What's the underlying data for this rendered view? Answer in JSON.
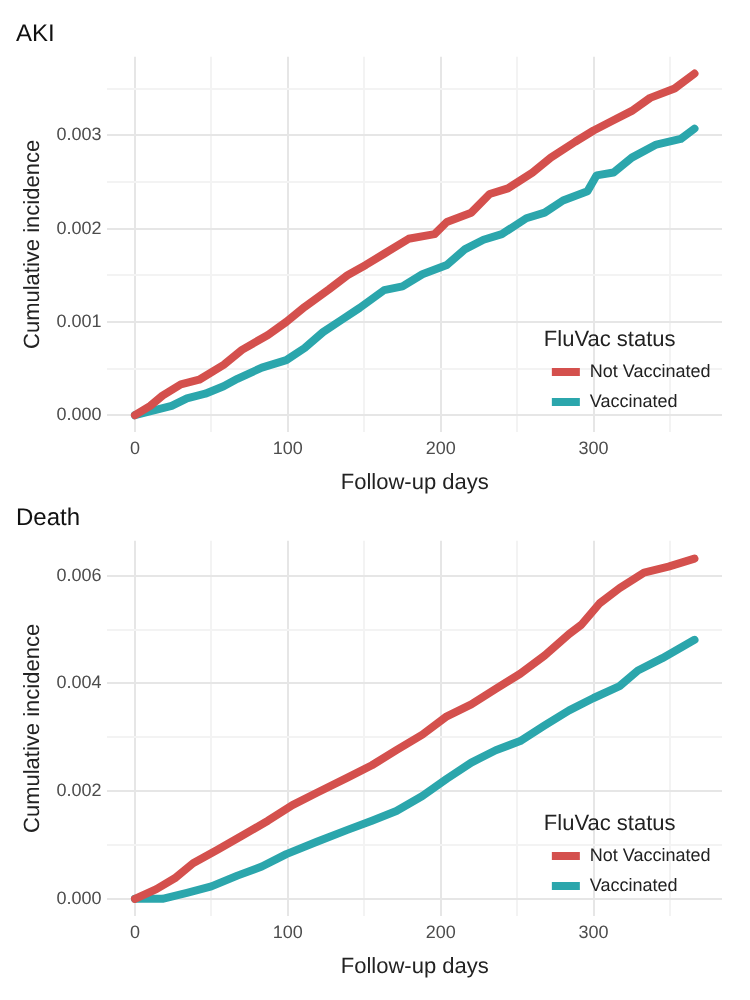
{
  "chart_data": [
    {
      "type": "line",
      "title": "AKI",
      "xlabel": "Follow-up days",
      "ylabel": "Cumulative incidence",
      "legend_title": "FluVac status",
      "legend": "bottom right",
      "grid": true,
      "xlim": [
        -18,
        384
      ],
      "xticks": [
        0,
        {
          "value": 50,
          "label": null
        },
        100,
        {
          "value": 150,
          "label": null
        },
        200,
        {
          "value": 250,
          "label": null
        },
        300,
        {
          "value": 350,
          "label": null
        }
      ],
      "ylim": [
        -0.00018,
        0.00384
      ],
      "yticks": [
        {
          "value": 0,
          "label": "0.000"
        },
        {
          "value": 0.0005,
          "label": null
        },
        {
          "value": 0.001,
          "label": "0.001"
        },
        {
          "value": 0.0015,
          "label": null
        },
        {
          "value": 0.002,
          "label": "0.002"
        },
        {
          "value": 0.0025,
          "label": null
        },
        {
          "value": 0.003,
          "label": "0.003"
        },
        {
          "value": 0.0035,
          "label": null
        }
      ],
      "series": [
        {
          "name": "Not Vaccinated",
          "color": "#d4504d",
          "x": [
            0,
            10,
            18,
            30,
            42,
            58,
            70,
            87,
            99,
            111,
            127,
            139,
            151,
            163,
            179,
            196,
            204,
            220,
            232,
            244,
            260,
            272,
            288,
            300,
            313,
            325,
            337,
            353,
            366
          ],
          "values": [
            0,
            0.0001,
            0.00021,
            0.00033,
            0.00038,
            0.00054,
            0.0007,
            0.00086,
            0.001,
            0.00116,
            0.00135,
            0.0015,
            0.00161,
            0.00173,
            0.00189,
            0.00194,
            0.00207,
            0.00217,
            0.00237,
            0.00243,
            0.0026,
            0.00276,
            0.00293,
            0.00305,
            0.00316,
            0.00326,
            0.0034,
            0.0035,
            0.00366
          ]
        },
        {
          "name": "Vaccinated",
          "color": "#2ba6ac",
          "x": [
            0,
            24,
            34,
            46,
            58,
            67,
            83,
            99,
            111,
            123,
            135,
            147,
            163,
            175,
            188,
            204,
            216,
            228,
            240,
            256,
            268,
            280,
            296,
            302,
            313,
            325,
            341,
            357,
            366
          ],
          "values": [
            0,
            0.0001,
            0.00018,
            0.00023,
            0.00031,
            0.00039,
            0.00051,
            0.00059,
            0.00072,
            0.00089,
            0.00102,
            0.00115,
            0.00134,
            0.00138,
            0.00151,
            0.00161,
            0.00178,
            0.00188,
            0.00194,
            0.00211,
            0.00217,
            0.0023,
            0.0024,
            0.00257,
            0.0026,
            0.00276,
            0.0029,
            0.00296,
            0.00307
          ]
        }
      ]
    },
    {
      "type": "line",
      "title": "Death",
      "xlabel": "Follow-up days",
      "ylabel": "Cumulative incidence",
      "legend_title": "FluVac status",
      "legend": "bottom right",
      "grid": true,
      "xlim": [
        -18,
        384
      ],
      "xticks": [
        0,
        {
          "value": 50,
          "label": null
        },
        100,
        {
          "value": 150,
          "label": null
        },
        200,
        {
          "value": 250,
          "label": null
        },
        300,
        {
          "value": 350,
          "label": null
        }
      ],
      "ylim": [
        -0.00032,
        0.00665
      ],
      "yticks": [
        {
          "value": 0,
          "label": "0.000"
        },
        {
          "value": 0.001,
          "label": null
        },
        {
          "value": 0.002,
          "label": "0.002"
        },
        {
          "value": 0.003,
          "label": null
        },
        {
          "value": 0.004,
          "label": "0.004"
        },
        {
          "value": 0.005,
          "label": null
        },
        {
          "value": 0.006,
          "label": "0.006"
        }
      ],
      "series": [
        {
          "name": "Not Vaccinated",
          "color": "#d4504d",
          "x": [
            0,
            14,
            26,
            38,
            54,
            70,
            87,
            103,
            119,
            139,
            155,
            171,
            188,
            204,
            220,
            236,
            252,
            268,
            284,
            292,
            304,
            317,
            333,
            349,
            366
          ],
          "values": [
            0,
            0.00018,
            0.00038,
            0.00066,
            0.00091,
            0.00117,
            0.00145,
            0.00174,
            0.00197,
            0.00225,
            0.00248,
            0.00276,
            0.00305,
            0.00339,
            0.00361,
            0.0039,
            0.00418,
            0.00452,
            0.00492,
            0.00509,
            0.00549,
            0.00577,
            0.00606,
            0.00617,
            0.00632
          ]
        },
        {
          "name": "Vaccinated",
          "color": "#2ba6ac",
          "x": [
            0,
            18,
            34,
            50,
            67,
            83,
            99,
            119,
            139,
            155,
            171,
            188,
            204,
            220,
            236,
            252,
            268,
            284,
            300,
            317,
            329,
            345,
            366
          ],
          "values": [
            0,
            0,
            0.00011,
            0.00023,
            0.00043,
            0.0006,
            0.00083,
            0.00106,
            0.00128,
            0.00145,
            0.00163,
            0.00191,
            0.00223,
            0.00253,
            0.00276,
            0.00293,
            0.00322,
            0.0035,
            0.00373,
            0.00395,
            0.00424,
            0.00447,
            0.00481
          ]
        }
      ]
    }
  ]
}
